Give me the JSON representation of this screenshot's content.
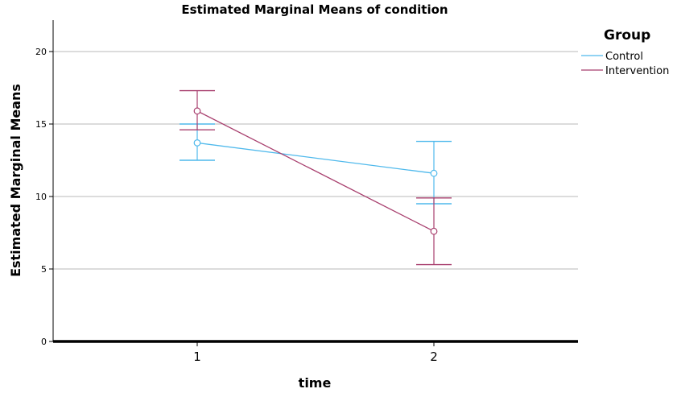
{
  "chart_data": {
    "type": "line",
    "title": "Estimated Marginal Means of condition",
    "xlabel": "time",
    "ylabel": "Estimated Marginal Means",
    "categories": [
      "1",
      "2"
    ],
    "ylim": [
      0,
      22
    ],
    "yticks": [
      0,
      5,
      10,
      15,
      20
    ],
    "grid": true,
    "legend": {
      "title": "Group",
      "position": "top-right"
    },
    "series": [
      {
        "name": "Control",
        "color": "#4fb9ec",
        "values": [
          13.7,
          11.6
        ],
        "ci_lower": [
          12.5,
          9.5
        ],
        "ci_upper": [
          15.0,
          13.8
        ]
      },
      {
        "name": "Intervention",
        "color": "#a83f6e",
        "values": [
          15.9,
          7.6
        ],
        "ci_lower": [
          14.6,
          5.3
        ],
        "ci_upper": [
          17.3,
          9.9
        ]
      }
    ]
  }
}
